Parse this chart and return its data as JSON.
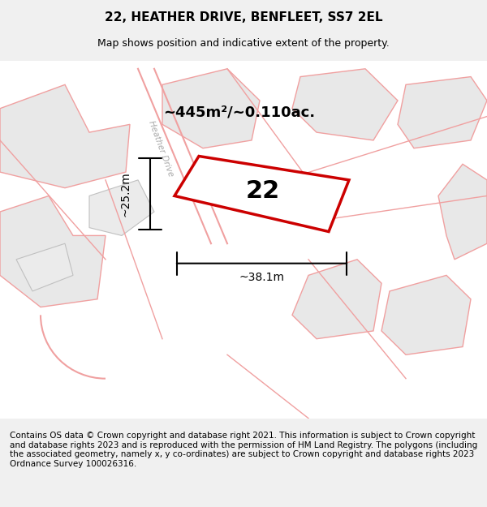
{
  "title": "22, HEATHER DRIVE, BENFLEET, SS7 2EL",
  "subtitle": "Map shows position and indicative extent of the property.",
  "footer": "Contains OS data © Crown copyright and database right 2021. This information is subject to Crown copyright and database rights 2023 and is reproduced with the permission of HM Land Registry. The polygons (including the associated geometry, namely x, y co-ordinates) are subject to Crown copyright and database rights 2023 Ordnance Survey 100026316.",
  "area_label": "~445m²/~0.110ac.",
  "width_label": "~38.1m",
  "height_label": "~25.2m",
  "house_number": "22",
  "bg_color": "#f5f5f5",
  "map_bg": "#ffffff",
  "plot_outline_color": "#cc0000",
  "plot_fill_color": "#ffffff",
  "road_label": "Heather Drive",
  "building_color": "#e8e8e8",
  "road_line_color": "#f0a0a0",
  "title_fontsize": 11,
  "subtitle_fontsize": 9,
  "footer_fontsize": 7.5
}
